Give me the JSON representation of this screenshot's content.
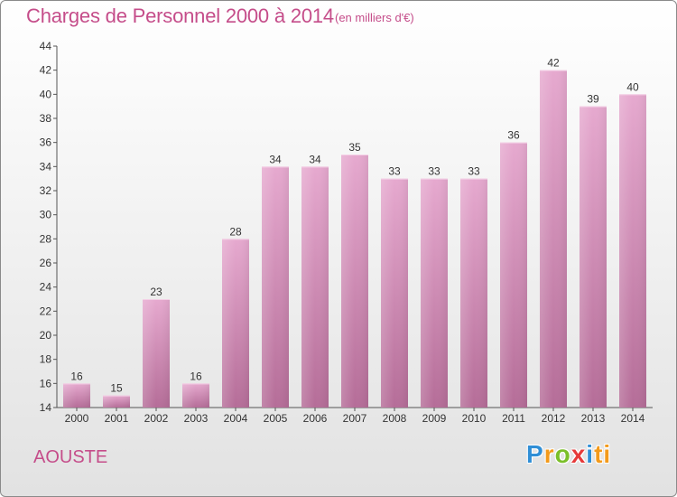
{
  "title": "Charges de Personnel 2000 à 2014",
  "subtitle": "(en milliers d'€)",
  "commune": "AOUSTE",
  "logo": {
    "letters": [
      "P",
      "r",
      "o",
      "x",
      "i",
      "ti"
    ]
  },
  "colors": {
    "bar_top": "#e6a9cf",
    "bar_bottom": "#b56d98",
    "title": "#c54d8a",
    "label": "#333333"
  },
  "chart_data": {
    "type": "bar",
    "categories": [
      "2000",
      "2001",
      "2002",
      "2003",
      "2004",
      "2005",
      "2006",
      "2007",
      "2008",
      "2009",
      "2010",
      "2011",
      "2012",
      "2013",
      "2014"
    ],
    "values": [
      16,
      15,
      23,
      16,
      28,
      34,
      34,
      35,
      33,
      33,
      33,
      36,
      42,
      39,
      40
    ],
    "ylim": [
      14,
      44
    ],
    "yticks": [
      14,
      16,
      18,
      20,
      22,
      24,
      26,
      28,
      30,
      32,
      34,
      36,
      38,
      40,
      42,
      44
    ],
    "grid": false,
    "title": "Charges de Personnel 2000 à 2014",
    "xlabel": "",
    "ylabel": ""
  }
}
